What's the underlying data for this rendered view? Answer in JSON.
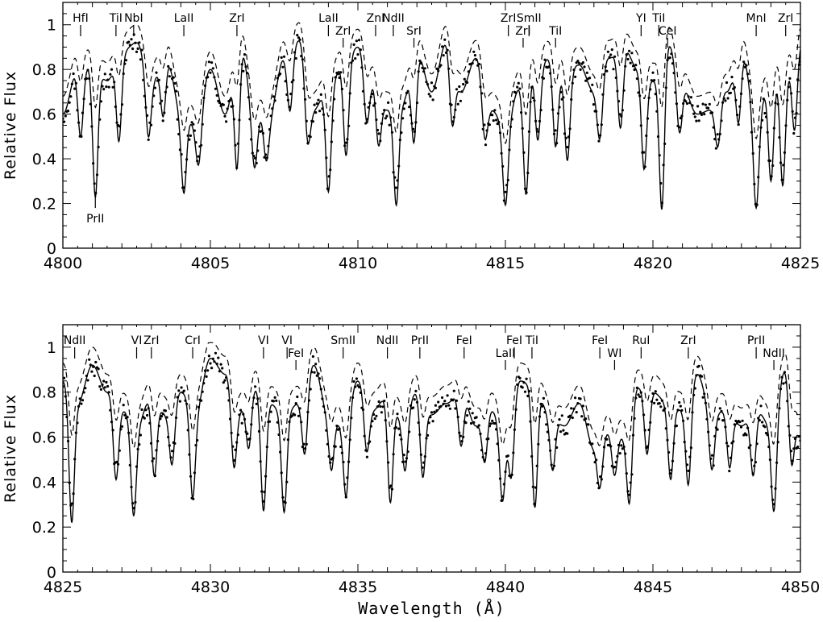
{
  "chart_data": [
    {
      "type": "line",
      "panel": "upper",
      "xlim": [
        4800,
        4825
      ],
      "ylim": [
        0,
        1.1
      ],
      "xticks": [
        4800,
        4805,
        4810,
        4815,
        4820,
        4825
      ],
      "yticks": [
        0,
        0.2,
        0.4,
        0.6,
        0.8,
        1
      ],
      "xlabel": "",
      "ylabel": "Relative Flux",
      "grid": false,
      "series": [
        {
          "style": "dots",
          "color": "#000000",
          "shown": "observed spectrum"
        },
        {
          "style": "solid",
          "color": "#000000",
          "shown": "synthetic spectrum"
        },
        {
          "style": "dashed",
          "color": "#000000",
          "shown": "synthetic spectrum"
        }
      ],
      "continuum_x": [
        4800,
        4800.5,
        4801,
        4801.5,
        4802,
        4802.5,
        4803,
        4803.5,
        4804,
        4804.5,
        4805,
        4805.5,
        4806,
        4806.5,
        4807,
        4807.5,
        4808,
        4808.5,
        4809,
        4809.5,
        4810,
        4810.5,
        4811,
        4811.5,
        4812,
        4812.5,
        4813,
        4813.5,
        4814,
        4814.5,
        4815,
        4815.5,
        4816,
        4816.5,
        4817,
        4817.5,
        4818,
        4818.5,
        4819,
        4819.5,
        4820,
        4820.5,
        4821,
        4821.5,
        4822,
        4822.5,
        4823,
        4823.5,
        4824,
        4824.5,
        4825
      ],
      "continuum_y": [
        0.6,
        0.8,
        0.82,
        0.75,
        0.88,
        0.92,
        0.75,
        0.85,
        0.62,
        0.55,
        0.8,
        0.6,
        0.92,
        0.6,
        0.6,
        0.85,
        0.93,
        0.62,
        0.72,
        0.82,
        0.9,
        0.75,
        0.62,
        0.65,
        0.88,
        0.7,
        0.92,
        0.7,
        0.85,
        0.62,
        0.55,
        0.72,
        0.8,
        0.85,
        0.78,
        0.82,
        0.7,
        0.85,
        0.9,
        0.8,
        0.75,
        0.92,
        0.72,
        0.6,
        0.62,
        0.7,
        0.88,
        0.6,
        0.75,
        0.8,
        0.92
      ],
      "absorption_lines": [
        {
          "x": 4800.6,
          "depth": 0.38
        },
        {
          "x": 4801.1,
          "depth": 0.72
        },
        {
          "x": 4801.9,
          "depth": 0.45
        },
        {
          "x": 4802.9,
          "depth": 0.35
        },
        {
          "x": 4803.4,
          "depth": 0.3
        },
        {
          "x": 4804.1,
          "depth": 0.6
        },
        {
          "x": 4804.6,
          "depth": 0.35
        },
        {
          "x": 4805.9,
          "depth": 0.6
        },
        {
          "x": 4806.5,
          "depth": 0.4
        },
        {
          "x": 4806.9,
          "depth": 0.35
        },
        {
          "x": 4807.7,
          "depth": 0.3
        },
        {
          "x": 4808.3,
          "depth": 0.35
        },
        {
          "x": 4809.0,
          "depth": 0.65
        },
        {
          "x": 4809.6,
          "depth": 0.5
        },
        {
          "x": 4810.3,
          "depth": 0.3
        },
        {
          "x": 4810.7,
          "depth": 0.35
        },
        {
          "x": 4811.3,
          "depth": 0.7
        },
        {
          "x": 4811.9,
          "depth": 0.45
        },
        {
          "x": 4813.2,
          "depth": 0.35
        },
        {
          "x": 4814.3,
          "depth": 0.3
        },
        {
          "x": 4815.0,
          "depth": 0.65
        },
        {
          "x": 4815.7,
          "depth": 0.68
        },
        {
          "x": 4816.1,
          "depth": 0.4
        },
        {
          "x": 4816.7,
          "depth": 0.45
        },
        {
          "x": 4817.1,
          "depth": 0.5
        },
        {
          "x": 4818.2,
          "depth": 0.35
        },
        {
          "x": 4818.9,
          "depth": 0.4
        },
        {
          "x": 4819.7,
          "depth": 0.55
        },
        {
          "x": 4820.3,
          "depth": 0.8
        },
        {
          "x": 4820.9,
          "depth": 0.3
        },
        {
          "x": 4822.2,
          "depth": 0.3
        },
        {
          "x": 4822.9,
          "depth": 0.35
        },
        {
          "x": 4823.5,
          "depth": 0.7
        },
        {
          "x": 4824.0,
          "depth": 0.6
        },
        {
          "x": 4824.4,
          "depth": 0.65
        },
        {
          "x": 4824.8,
          "depth": 0.4
        }
      ],
      "annotations": [
        {
          "text": "HfI",
          "x": 4800.6,
          "pos": "top"
        },
        {
          "text": "TiI",
          "x": 4801.8,
          "pos": "top"
        },
        {
          "text": "NbI",
          "x": 4802.4,
          "pos": "top"
        },
        {
          "text": "LaII",
          "x": 4804.1,
          "pos": "top"
        },
        {
          "text": "ZrI",
          "x": 4805.9,
          "pos": "top"
        },
        {
          "text": "LaII",
          "x": 4809.0,
          "pos": "top"
        },
        {
          "text": "ZrI",
          "x": 4809.5,
          "pos": "top2"
        },
        {
          "text": "ZnI",
          "x": 4810.6,
          "pos": "top"
        },
        {
          "text": "NdII",
          "x": 4811.2,
          "pos": "top"
        },
        {
          "text": "SrI",
          "x": 4811.9,
          "pos": "top2"
        },
        {
          "text": "ZrI",
          "x": 4815.1,
          "pos": "top"
        },
        {
          "text": "SmII",
          "x": 4815.8,
          "pos": "top"
        },
        {
          "text": "ZrI",
          "x": 4815.6,
          "pos": "top2"
        },
        {
          "text": "TiI",
          "x": 4816.7,
          "pos": "top2"
        },
        {
          "text": "YI",
          "x": 4819.6,
          "pos": "top"
        },
        {
          "text": "TiI",
          "x": 4820.2,
          "pos": "top"
        },
        {
          "text": "CeI",
          "x": 4820.5,
          "pos": "top2"
        },
        {
          "text": "MnI",
          "x": 4823.5,
          "pos": "top"
        },
        {
          "text": "ZrI",
          "x": 4824.5,
          "pos": "top"
        },
        {
          "text": "PrII",
          "x": 4801.1,
          "pos": "bottom"
        }
      ]
    },
    {
      "type": "line",
      "panel": "lower",
      "xlim": [
        4825,
        4850
      ],
      "ylim": [
        0,
        1.1
      ],
      "xticks": [
        4825,
        4830,
        4835,
        4840,
        4845,
        4850
      ],
      "yticks": [
        0,
        0.2,
        0.4,
        0.6,
        0.8,
        1
      ],
      "xlabel": "Wavelength (Å)",
      "ylabel": "Relative Flux",
      "grid": false,
      "series": [
        {
          "style": "dots",
          "color": "#000000",
          "shown": "observed spectrum"
        },
        {
          "style": "solid",
          "color": "#000000",
          "shown": "synthetic spectrum"
        },
        {
          "style": "dashed",
          "color": "#000000",
          "shown": "synthetic spectrum"
        }
      ],
      "continuum_x": [
        4825,
        4825.5,
        4826,
        4826.5,
        4827,
        4827.5,
        4828,
        4828.5,
        4829,
        4829.5,
        4830,
        4830.5,
        4831,
        4831.5,
        4832,
        4832.5,
        4833,
        4833.5,
        4834,
        4834.5,
        4835,
        4835.5,
        4836,
        4836.5,
        4837,
        4837.5,
        4838,
        4838.5,
        4839,
        4839.5,
        4840,
        4840.5,
        4841,
        4841.5,
        4842,
        4842.5,
        4843,
        4843.5,
        4844,
        4844.5,
        4845,
        4845.5,
        4846,
        4846.5,
        4847,
        4847.5,
        4848,
        4848.5,
        4849,
        4849.5,
        4850
      ],
      "continuum_y": [
        0.85,
        0.75,
        0.92,
        0.8,
        0.72,
        0.65,
        0.78,
        0.7,
        0.8,
        0.72,
        0.95,
        0.88,
        0.72,
        0.82,
        0.75,
        0.7,
        0.75,
        0.92,
        0.7,
        0.65,
        0.85,
        0.72,
        0.78,
        0.68,
        0.8,
        0.7,
        0.75,
        0.8,
        0.65,
        0.72,
        0.62,
        0.85,
        0.82,
        0.7,
        0.65,
        0.75,
        0.55,
        0.62,
        0.6,
        0.82,
        0.8,
        0.75,
        0.72,
        0.88,
        0.7,
        0.72,
        0.65,
        0.72,
        0.65,
        0.9,
        0.6
      ],
      "absorption_lines": [
        {
          "x": 4825.3,
          "depth": 0.72
        },
        {
          "x": 4826.8,
          "depth": 0.45
        },
        {
          "x": 4827.4,
          "depth": 0.62
        },
        {
          "x": 4828.1,
          "depth": 0.45
        },
        {
          "x": 4828.7,
          "depth": 0.35
        },
        {
          "x": 4829.4,
          "depth": 0.55
        },
        {
          "x": 4830.8,
          "depth": 0.4
        },
        {
          "x": 4831.3,
          "depth": 0.3
        },
        {
          "x": 4831.8,
          "depth": 0.65
        },
        {
          "x": 4832.5,
          "depth": 0.62
        },
        {
          "x": 4833.2,
          "depth": 0.35
        },
        {
          "x": 4834.1,
          "depth": 0.35
        },
        {
          "x": 4834.6,
          "depth": 0.5
        },
        {
          "x": 4835.3,
          "depth": 0.3
        },
        {
          "x": 4836.1,
          "depth": 0.6
        },
        {
          "x": 4836.6,
          "depth": 0.35
        },
        {
          "x": 4837.2,
          "depth": 0.45
        },
        {
          "x": 4838.5,
          "depth": 0.3
        },
        {
          "x": 4839.3,
          "depth": 0.3
        },
        {
          "x": 4839.9,
          "depth": 0.5
        },
        {
          "x": 4840.2,
          "depth": 0.4
        },
        {
          "x": 4841.0,
          "depth": 0.65
        },
        {
          "x": 4841.6,
          "depth": 0.35
        },
        {
          "x": 4843.2,
          "depth": 0.35
        },
        {
          "x": 4843.7,
          "depth": 0.3
        },
        {
          "x": 4844.2,
          "depth": 0.55
        },
        {
          "x": 4844.8,
          "depth": 0.35
        },
        {
          "x": 4845.6,
          "depth": 0.45
        },
        {
          "x": 4846.2,
          "depth": 0.5
        },
        {
          "x": 4847.0,
          "depth": 0.35
        },
        {
          "x": 4847.6,
          "depth": 0.35
        },
        {
          "x": 4848.4,
          "depth": 0.4
        },
        {
          "x": 4849.1,
          "depth": 0.6
        },
        {
          "x": 4849.7,
          "depth": 0.4
        }
      ],
      "annotations": [
        {
          "text": "NdII",
          "x": 4825.4,
          "pos": "top"
        },
        {
          "text": "VI",
          "x": 4827.5,
          "pos": "top"
        },
        {
          "text": "ZrI",
          "x": 4828.0,
          "pos": "top"
        },
        {
          "text": "CrI",
          "x": 4829.4,
          "pos": "top"
        },
        {
          "text": "VI",
          "x": 4831.8,
          "pos": "top"
        },
        {
          "text": "VI",
          "x": 4832.6,
          "pos": "top"
        },
        {
          "text": "FeI",
          "x": 4832.9,
          "pos": "top2"
        },
        {
          "text": "SmII",
          "x": 4834.5,
          "pos": "top"
        },
        {
          "text": "NdII",
          "x": 4836.0,
          "pos": "top"
        },
        {
          "text": "PrII",
          "x": 4837.1,
          "pos": "top"
        },
        {
          "text": "FeI",
          "x": 4838.6,
          "pos": "top"
        },
        {
          "text": "LaII",
          "x": 4840.0,
          "pos": "top2"
        },
        {
          "text": "FeI",
          "x": 4840.3,
          "pos": "top"
        },
        {
          "text": "TiI",
          "x": 4840.9,
          "pos": "top"
        },
        {
          "text": "FeI",
          "x": 4843.2,
          "pos": "top"
        },
        {
          "text": "WI",
          "x": 4843.7,
          "pos": "top2"
        },
        {
          "text": "RuI",
          "x": 4844.6,
          "pos": "top"
        },
        {
          "text": "ZrI",
          "x": 4846.2,
          "pos": "top"
        },
        {
          "text": "PrII",
          "x": 4848.5,
          "pos": "top"
        },
        {
          "text": "NdII",
          "x": 4849.1,
          "pos": "top2"
        }
      ]
    }
  ]
}
